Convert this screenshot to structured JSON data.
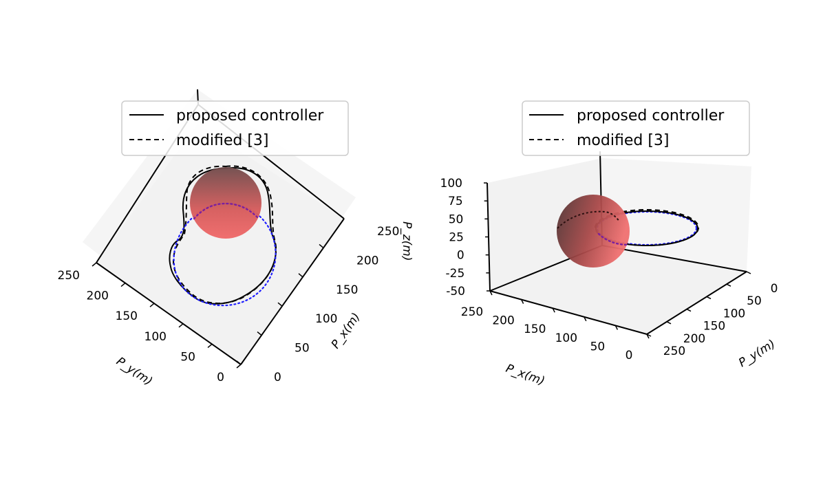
{
  "chart_data": [
    {
      "type": "line",
      "view": "3d-top",
      "title": "",
      "xlabel": "P_x(m)",
      "ylabel": "P_y(m)",
      "zlabel": "",
      "xlim": [
        0,
        250
      ],
      "ylim": [
        0,
        250
      ],
      "x_ticks": [
        0,
        50,
        100,
        150,
        200,
        250
      ],
      "y_ticks": [
        0,
        50,
        100,
        150,
        200,
        250
      ],
      "legend": {
        "placement": "top-center",
        "entries": [
          {
            "label": "proposed controller",
            "style": "solid",
            "color": "#000000"
          },
          {
            "label": "modified [3]",
            "style": "dashed",
            "color": "#000000"
          }
        ]
      },
      "series": [
        {
          "name": "proposed controller",
          "style": "solid",
          "color": "#000000"
        },
        {
          "name": "modified [3]",
          "style": "dashed",
          "color": "#000000"
        },
        {
          "style": "dotted",
          "color": "#1f1fff"
        }
      ],
      "obstacle": {
        "shape": "sphere",
        "center_xy": [
          95,
          175
        ],
        "radius": 40,
        "color": "#e05a5a"
      },
      "grid": false
    },
    {
      "type": "line",
      "view": "3d-perspective",
      "title": "",
      "xlabel": "P_x(m)",
      "ylabel": "P_y(m)",
      "zlabel": "P_z(m)",
      "xlim": [
        0,
        250
      ],
      "ylim": [
        0,
        250
      ],
      "zlim": [
        -50,
        100
      ],
      "x_ticks": [
        0,
        50,
        100,
        150,
        200,
        250
      ],
      "y_ticks": [
        0,
        50,
        100,
        150,
        200,
        250
      ],
      "z_ticks": [
        -50,
        -25,
        0,
        25,
        50,
        75,
        100
      ],
      "legend": {
        "placement": "top-center",
        "entries": [
          {
            "label": "proposed controller",
            "style": "solid",
            "color": "#000000"
          },
          {
            "label": "modified [3]",
            "style": "dashed",
            "color": "#000000"
          }
        ]
      },
      "series": [
        {
          "name": "proposed controller",
          "style": "solid",
          "color": "#000000"
        },
        {
          "name": "modified [3]",
          "style": "dashed",
          "color": "#000000"
        },
        {
          "style": "dotted",
          "color": "#1f1fff"
        }
      ],
      "obstacle": {
        "shape": "sphere",
        "color": "#e05a5a"
      },
      "grid": false
    }
  ]
}
